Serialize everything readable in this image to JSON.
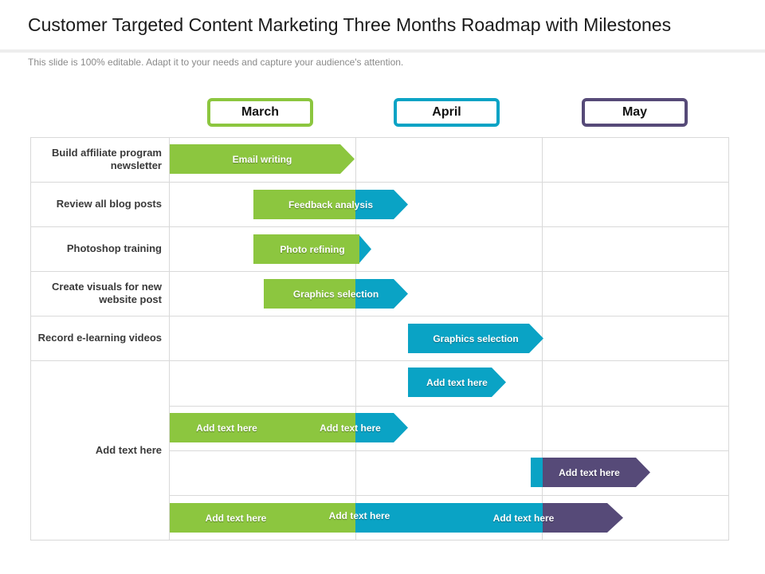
{
  "title": "Customer Targeted Content Marketing Three Months Roadmap with Milestones",
  "subtitle": "This slide is 100% editable. Adapt it to your needs and capture your audience's attention.",
  "colors": {
    "green": "#8cc63f",
    "teal": "#0aa3c5",
    "purple": "#564a78"
  },
  "months": [
    {
      "label": "March",
      "color": "#8cc63f"
    },
    {
      "label": "April",
      "color": "#0aa3c5"
    },
    {
      "label": "May",
      "color": "#564a78"
    }
  ],
  "rows": [
    "Build affiliate program newsletter",
    "Review all blog posts",
    "Photoshop training",
    "Create visuals for new website post",
    "Record e-learning videos",
    "Add text here"
  ],
  "bars": [
    {
      "row": 0,
      "segments": [
        "green"
      ],
      "labels": [
        "Email writing"
      ]
    },
    {
      "row": 1,
      "segments": [
        "green",
        "teal"
      ],
      "labels": [
        "Feedback analysis"
      ]
    },
    {
      "row": 2,
      "segments": [
        "green",
        "teal"
      ],
      "labels": [
        "Photo refining"
      ]
    },
    {
      "row": 3,
      "segments": [
        "green",
        "teal"
      ],
      "labels": [
        "Graphics selection"
      ]
    },
    {
      "row": 4,
      "segments": [
        "teal"
      ],
      "labels": [
        "Graphics selection"
      ]
    },
    {
      "row": 5,
      "segments": [
        "teal"
      ],
      "labels": [
        "Add text here"
      ]
    },
    {
      "row": 5,
      "segments": [
        "green",
        "teal"
      ],
      "labels": [
        "Add text here",
        "Add text here"
      ]
    },
    {
      "row": 5,
      "segments": [
        "teal",
        "purple"
      ],
      "labels": [
        "Add text here"
      ]
    },
    {
      "row": 5,
      "segments": [
        "green",
        "teal",
        "purple"
      ],
      "labels": [
        "Add text here",
        "Add text here",
        "Add text here"
      ]
    }
  ]
}
